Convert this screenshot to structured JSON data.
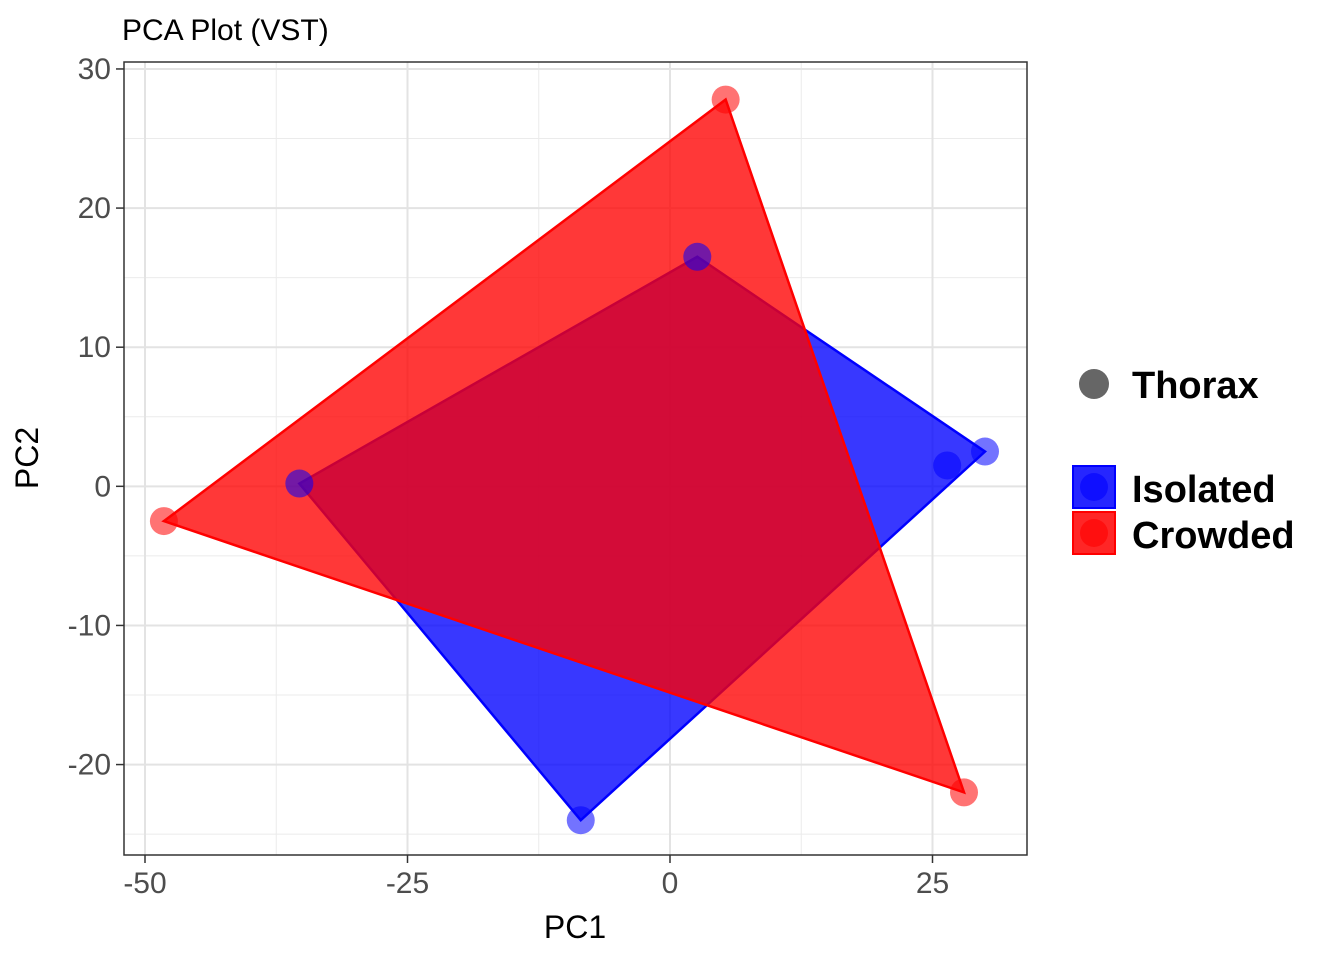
{
  "chart_data": {
    "type": "scatter",
    "title": "PCA Plot (VST)",
    "xlabel": "PC1",
    "ylabel": "PC2",
    "xlim": [
      -52,
      34
    ],
    "ylim": [
      -26.5,
      30.5
    ],
    "x_ticks": [
      -50,
      -25,
      0,
      25
    ],
    "y_ticks": [
      -20,
      -10,
      0,
      10,
      20,
      30
    ],
    "x_tick_labels": [
      "-50",
      "-25",
      "0",
      "25"
    ],
    "y_tick_labels": [
      "-20",
      "-10",
      "0",
      "10",
      "20",
      "30"
    ],
    "grid": true,
    "legend_position": "right",
    "shape_legend": {
      "label": "Thorax",
      "color": "#666666"
    },
    "series": [
      {
        "name": "Isolated",
        "color": "#0000ff",
        "hull": true,
        "points": [
          {
            "x": -35.3,
            "y": 0.2
          },
          {
            "x": 2.6,
            "y": 16.5
          },
          {
            "x": 26.4,
            "y": 1.5
          },
          {
            "x": 30.0,
            "y": 2.5
          },
          {
            "x": -8.5,
            "y": -24.0
          }
        ]
      },
      {
        "name": "Crowded",
        "color": "#ff0000",
        "hull": true,
        "points": [
          {
            "x": -48.2,
            "y": -2.5
          },
          {
            "x": 5.3,
            "y": 27.8
          },
          {
            "x": 28.0,
            "y": -22.0
          }
        ]
      }
    ]
  }
}
